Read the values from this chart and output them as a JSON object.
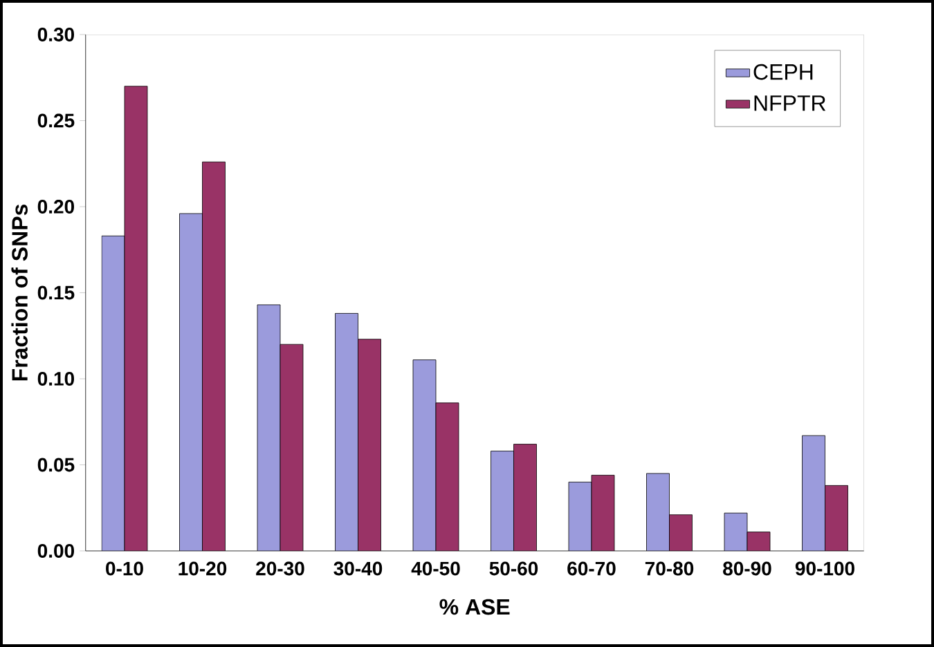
{
  "chart_data": {
    "type": "bar",
    "xlabel": "% ASE",
    "ylabel": "Fraction of SNPs",
    "categories": [
      "0-10",
      "10-20",
      "20-30",
      "30-40",
      "40-50",
      "50-60",
      "60-70",
      "70-80",
      "80-90",
      "90-100"
    ],
    "series": [
      {
        "name": "CEPH",
        "color": "#9b9bdc",
        "values": [
          0.183,
          0.196,
          0.143,
          0.138,
          0.111,
          0.058,
          0.04,
          0.045,
          0.022,
          0.067
        ]
      },
      {
        "name": "NFPTR",
        "color": "#993366",
        "values": [
          0.27,
          0.226,
          0.12,
          0.123,
          0.086,
          0.062,
          0.044,
          0.021,
          0.011,
          0.038
        ]
      }
    ],
    "ylim": [
      0,
      0.3
    ],
    "yticks": [
      {
        "value": 0,
        "label": "0.00"
      },
      {
        "value": 0.05,
        "label": "0.05"
      },
      {
        "value": 0.1,
        "label": "0.10"
      },
      {
        "value": 0.15,
        "label": "0.15"
      },
      {
        "value": 0.2,
        "label": "0.20"
      },
      {
        "value": 0.25,
        "label": "0.25"
      },
      {
        "value": 0.3,
        "label": "0.30"
      }
    ],
    "legend": "top right",
    "grid": false
  }
}
